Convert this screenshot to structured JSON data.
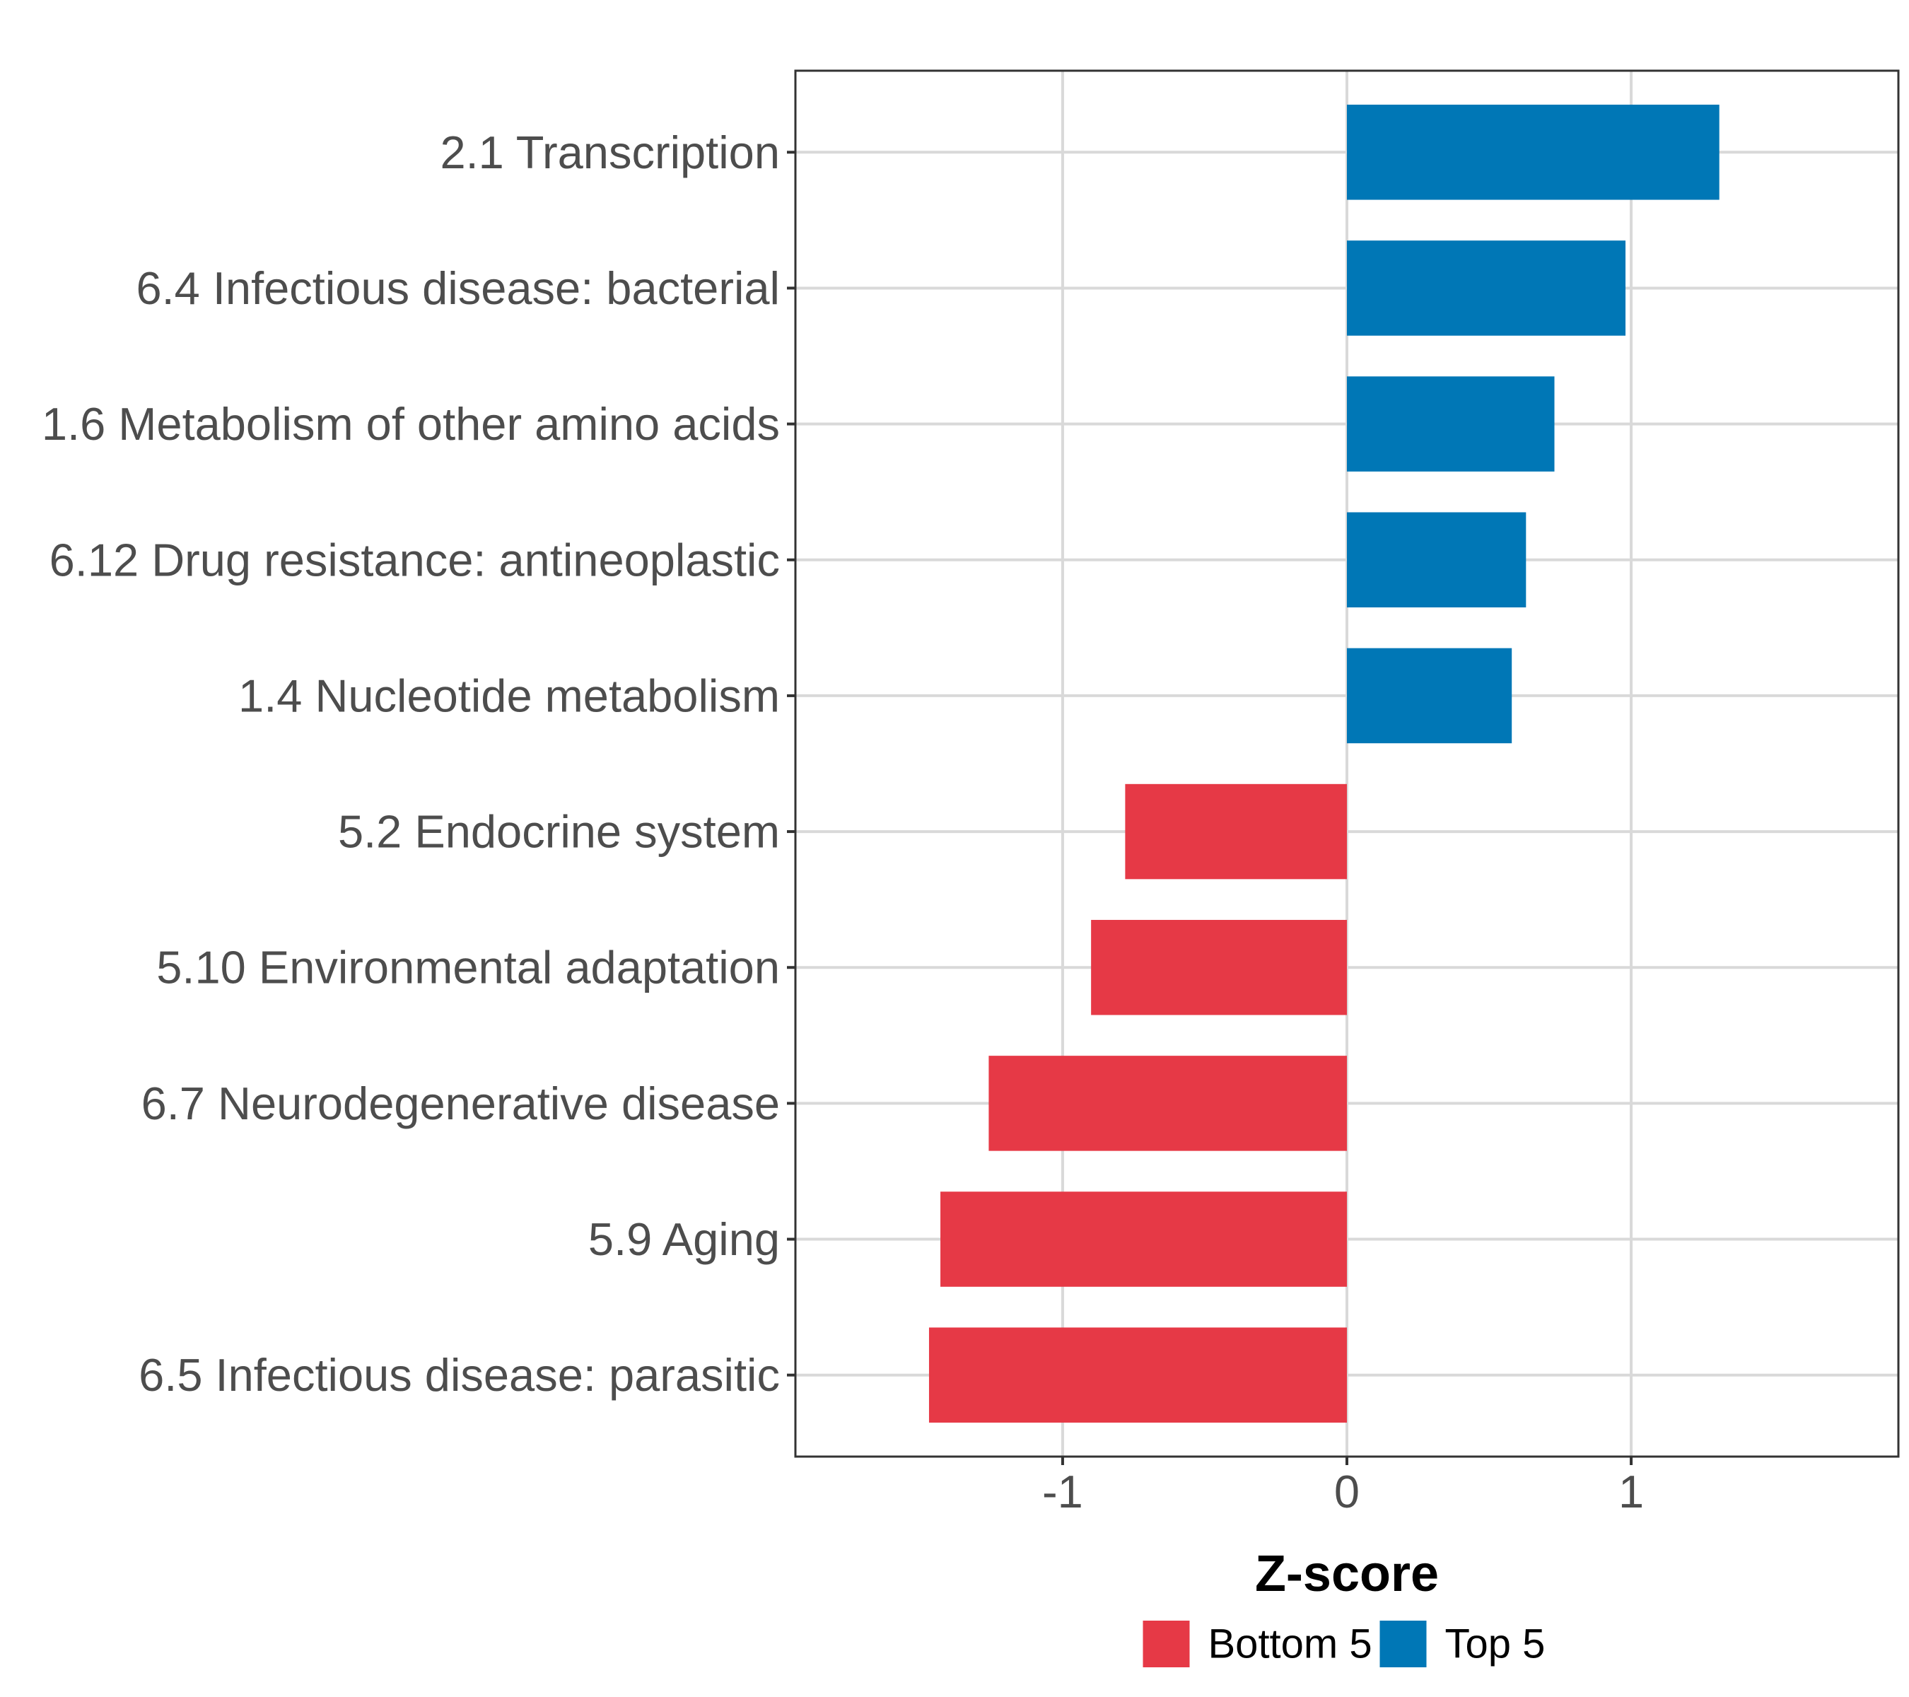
{
  "chart_data": {
    "type": "bar",
    "orientation": "horizontal",
    "categories": [
      "2.1 Transcription",
      "6.4 Infectious disease: bacterial",
      "1.6 Metabolism of other amino acids",
      "6.12 Drug resistance: antineoplastic",
      "1.4 Nucleotide metabolism",
      "5.2 Endocrine system",
      "5.10 Environmental adaptation",
      "6.7 Neurodegenerative disease",
      "5.9 Aging",
      "6.5 Infectious disease: parasitic"
    ],
    "values": [
      1.31,
      0.98,
      0.73,
      0.63,
      0.58,
      -0.78,
      -0.9,
      -1.26,
      -1.43,
      -1.47
    ],
    "groups": [
      "Top 5",
      "Top 5",
      "Top 5",
      "Top 5",
      "Top 5",
      "Bottom 5",
      "Bottom 5",
      "Bottom 5",
      "Bottom 5",
      "Bottom 5"
    ],
    "xlabel": "Z-score",
    "ylabel": "",
    "xlim": [
      -1.94,
      1.94
    ],
    "xticks": [
      -1,
      0,
      1
    ],
    "xtick_labels": [
      "-1",
      "0",
      "1"
    ],
    "grid": true,
    "legend": {
      "position": "bottom",
      "entries": [
        {
          "label": "Bottom 5",
          "color": "#E63946"
        },
        {
          "label": "Top 5",
          "color": "#0077B6"
        }
      ]
    },
    "colors": {
      "Top 5": "#0077B6",
      "Bottom 5": "#E63946"
    }
  }
}
